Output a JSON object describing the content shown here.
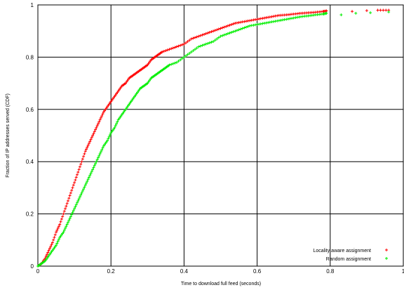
{
  "chart_data": {
    "type": "scatter",
    "xlabel": "Time to download full feed (seconds)",
    "ylabel": "Fraction of IP addresses served (CDF)",
    "xlim": [
      0,
      1
    ],
    "ylim": [
      0,
      1
    ],
    "xticks": [
      "0",
      "0.2",
      "0.4",
      "0.6",
      "0.8",
      "1"
    ],
    "yticks": [
      "0",
      "0.2",
      "0.4",
      "0.6",
      "0.8",
      "1"
    ],
    "grid": true,
    "legend_position": "bottom-right",
    "series": [
      {
        "name": "Locality aware assignment",
        "color": "#ff0000",
        "marker": "plus",
        "points": [
          [
            0.0,
            0.0
          ],
          [
            0.01,
            0.01
          ],
          [
            0.02,
            0.03
          ],
          [
            0.03,
            0.06
          ],
          [
            0.04,
            0.09
          ],
          [
            0.05,
            0.13
          ],
          [
            0.06,
            0.16
          ],
          [
            0.07,
            0.2
          ],
          [
            0.08,
            0.24
          ],
          [
            0.09,
            0.28
          ],
          [
            0.1,
            0.32
          ],
          [
            0.11,
            0.36
          ],
          [
            0.12,
            0.4
          ],
          [
            0.13,
            0.44
          ],
          [
            0.14,
            0.47
          ],
          [
            0.15,
            0.5
          ],
          [
            0.16,
            0.53
          ],
          [
            0.17,
            0.56
          ],
          [
            0.18,
            0.59
          ],
          [
            0.19,
            0.61
          ],
          [
            0.2,
            0.63
          ],
          [
            0.21,
            0.65
          ],
          [
            0.22,
            0.67
          ],
          [
            0.23,
            0.69
          ],
          [
            0.24,
            0.7
          ],
          [
            0.25,
            0.72
          ],
          [
            0.26,
            0.73
          ],
          [
            0.27,
            0.74
          ],
          [
            0.28,
            0.75
          ],
          [
            0.29,
            0.76
          ],
          [
            0.3,
            0.77
          ],
          [
            0.31,
            0.79
          ],
          [
            0.32,
            0.8
          ],
          [
            0.33,
            0.81
          ],
          [
            0.34,
            0.82
          ],
          [
            0.36,
            0.83
          ],
          [
            0.38,
            0.84
          ],
          [
            0.4,
            0.85
          ],
          [
            0.42,
            0.87
          ],
          [
            0.44,
            0.88
          ],
          [
            0.46,
            0.89
          ],
          [
            0.48,
            0.9
          ],
          [
            0.5,
            0.91
          ],
          [
            0.52,
            0.92
          ],
          [
            0.54,
            0.93
          ],
          [
            0.56,
            0.935
          ],
          [
            0.58,
            0.94
          ],
          [
            0.6,
            0.945
          ],
          [
            0.62,
            0.95
          ],
          [
            0.64,
            0.955
          ],
          [
            0.66,
            0.96
          ],
          [
            0.68,
            0.962
          ],
          [
            0.7,
            0.965
          ],
          [
            0.72,
            0.968
          ],
          [
            0.74,
            0.97
          ],
          [
            0.76,
            0.972
          ],
          [
            0.78,
            0.975
          ],
          [
            0.79,
            0.977
          ],
          [
            0.86,
            0.975
          ],
          [
            0.9,
            0.978
          ],
          [
            0.93,
            0.98
          ],
          [
            0.96,
            0.98
          ]
        ]
      },
      {
        "name": "Random assignment",
        "color": "#00ee00",
        "marker": "plus",
        "points": [
          [
            0.0,
            0.0
          ],
          [
            0.01,
            0.01
          ],
          [
            0.02,
            0.02
          ],
          [
            0.03,
            0.04
          ],
          [
            0.04,
            0.06
          ],
          [
            0.05,
            0.08
          ],
          [
            0.06,
            0.11
          ],
          [
            0.07,
            0.13
          ],
          [
            0.08,
            0.16
          ],
          [
            0.09,
            0.19
          ],
          [
            0.1,
            0.22
          ],
          [
            0.11,
            0.25
          ],
          [
            0.12,
            0.28
          ],
          [
            0.13,
            0.31
          ],
          [
            0.14,
            0.34
          ],
          [
            0.15,
            0.37
          ],
          [
            0.16,
            0.4
          ],
          [
            0.17,
            0.43
          ],
          [
            0.18,
            0.46
          ],
          [
            0.19,
            0.48
          ],
          [
            0.2,
            0.51
          ],
          [
            0.21,
            0.53
          ],
          [
            0.22,
            0.56
          ],
          [
            0.23,
            0.58
          ],
          [
            0.24,
            0.6
          ],
          [
            0.25,
            0.62
          ],
          [
            0.26,
            0.64
          ],
          [
            0.27,
            0.66
          ],
          [
            0.28,
            0.68
          ],
          [
            0.29,
            0.69
          ],
          [
            0.3,
            0.7
          ],
          [
            0.31,
            0.72
          ],
          [
            0.32,
            0.73
          ],
          [
            0.33,
            0.74
          ],
          [
            0.34,
            0.75
          ],
          [
            0.35,
            0.76
          ],
          [
            0.36,
            0.77
          ],
          [
            0.38,
            0.78
          ],
          [
            0.4,
            0.8
          ],
          [
            0.42,
            0.82
          ],
          [
            0.44,
            0.84
          ],
          [
            0.46,
            0.85
          ],
          [
            0.48,
            0.86
          ],
          [
            0.5,
            0.88
          ],
          [
            0.52,
            0.89
          ],
          [
            0.54,
            0.9
          ],
          [
            0.56,
            0.91
          ],
          [
            0.58,
            0.92
          ],
          [
            0.6,
            0.925
          ],
          [
            0.62,
            0.93
          ],
          [
            0.64,
            0.935
          ],
          [
            0.66,
            0.94
          ],
          [
            0.68,
            0.945
          ],
          [
            0.7,
            0.95
          ],
          [
            0.72,
            0.955
          ],
          [
            0.74,
            0.958
          ],
          [
            0.76,
            0.962
          ],
          [
            0.78,
            0.965
          ],
          [
            0.79,
            0.968
          ],
          [
            0.83,
            0.962
          ],
          [
            0.87,
            0.968
          ],
          [
            0.91,
            0.97
          ],
          [
            0.96,
            0.973
          ]
        ]
      }
    ]
  }
}
